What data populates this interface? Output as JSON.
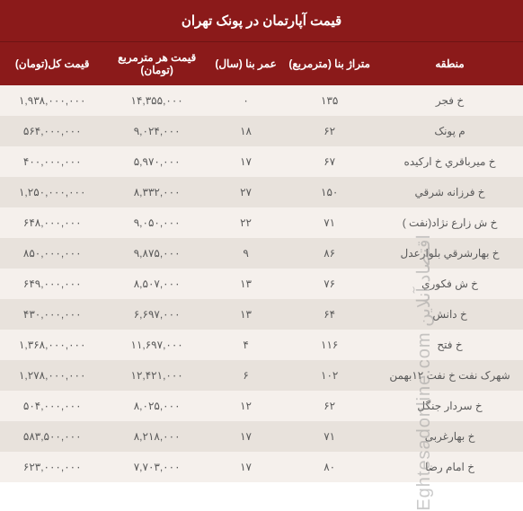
{
  "title": "قیمت آپارتمان در پونک تهران",
  "columns": {
    "region": "منطقه",
    "area": "متراژ بنا (مترمربع)",
    "age": "عمر بنا (سال)",
    "ppsm": "قیمت هر مترمربع (تومان)",
    "total": "قیمت کل(تومان)"
  },
  "rows": [
    {
      "region": "خ فجر",
      "area": "۱۳۵",
      "age": "۰",
      "ppsm": "۱۴,۳۵۵,۰۰۰",
      "total": "۱,۹۳۸,۰۰۰,۰۰۰"
    },
    {
      "region": "م پونک",
      "area": "۶۲",
      "age": "۱۸",
      "ppsm": "۹,۰۲۴,۰۰۰",
      "total": "۵۶۴,۰۰۰,۰۰۰"
    },
    {
      "region": "خ میرباقري خ ارکیده",
      "area": "۶۷",
      "age": "۱۷",
      "ppsm": "۵,۹۷۰,۰۰۰",
      "total": "۴۰۰,۰۰۰,۰۰۰"
    },
    {
      "region": "خ فرزانه شرقي",
      "area": "۱۵۰",
      "age": "۲۷",
      "ppsm": "۸,۳۳۲,۰۰۰",
      "total": "۱,۲۵۰,۰۰۰,۰۰۰"
    },
    {
      "region": "خ ش زارع نژاد(نفت )",
      "area": "۷۱",
      "age": "۲۲",
      "ppsm": "۹,۰۵۰,۰۰۰",
      "total": "۶۴۸,۰۰۰,۰۰۰"
    },
    {
      "region": "خ بهارشرقي بلوارعدل",
      "area": "۸۶",
      "age": "۹",
      "ppsm": "۹,۸۷۵,۰۰۰",
      "total": "۸۵۰,۰۰۰,۰۰۰"
    },
    {
      "region": "خ ش فکوري",
      "area": "۷۶",
      "age": "۱۳",
      "ppsm": "۸,۵۰۷,۰۰۰",
      "total": "۶۴۹,۰۰۰,۰۰۰"
    },
    {
      "region": "خ دانش",
      "area": "۶۴",
      "age": "۱۳",
      "ppsm": "۶,۶۹۷,۰۰۰",
      "total": "۴۳۰,۰۰۰,۰۰۰"
    },
    {
      "region": "خ فتح",
      "area": "۱۱۶",
      "age": "۴",
      "ppsm": "۱۱,۶۹۷,۰۰۰",
      "total": "۱,۳۶۸,۰۰۰,۰۰۰"
    },
    {
      "region": "شهرک نفت خ نفت ۱۲بهمن",
      "area": "۱۰۲",
      "age": "۶",
      "ppsm": "۱۲,۴۲۱,۰۰۰",
      "total": "۱,۲۷۸,۰۰۰,۰۰۰"
    },
    {
      "region": "خ سردار جنگل",
      "area": "۶۲",
      "age": "۱۲",
      "ppsm": "۸,۰۲۵,۰۰۰",
      "total": "۵۰۴,۰۰۰,۰۰۰"
    },
    {
      "region": "خ بهارغربی",
      "area": "۷۱",
      "age": "۱۷",
      "ppsm": "۸,۲۱۸,۰۰۰",
      "total": "۵۸۳,۵۰۰,۰۰۰"
    },
    {
      "region": "خ امام رضا",
      "area": "۸۰",
      "age": "۱۷",
      "ppsm": "۷,۷۰۳,۰۰۰",
      "total": "۶۲۳,۰۰۰,۰۰۰"
    }
  ],
  "watermark": {
    "fa": "اقتصاد آنلاین",
    "en": "Eghtesadonline.com"
  },
  "style": {
    "header_bg": "#8b1a1a",
    "header_fg": "#ffffff",
    "row_odd_bg": "#f5f0ec",
    "row_even_bg": "#e8e2dc",
    "cell_fg": "#5a5a5a",
    "title_fontsize": 15,
    "header_fontsize": 12,
    "cell_fontsize": 12,
    "col_widths_pct": {
      "region": 28,
      "area": 18,
      "age": 14,
      "ppsm": 20,
      "total": 20
    }
  }
}
